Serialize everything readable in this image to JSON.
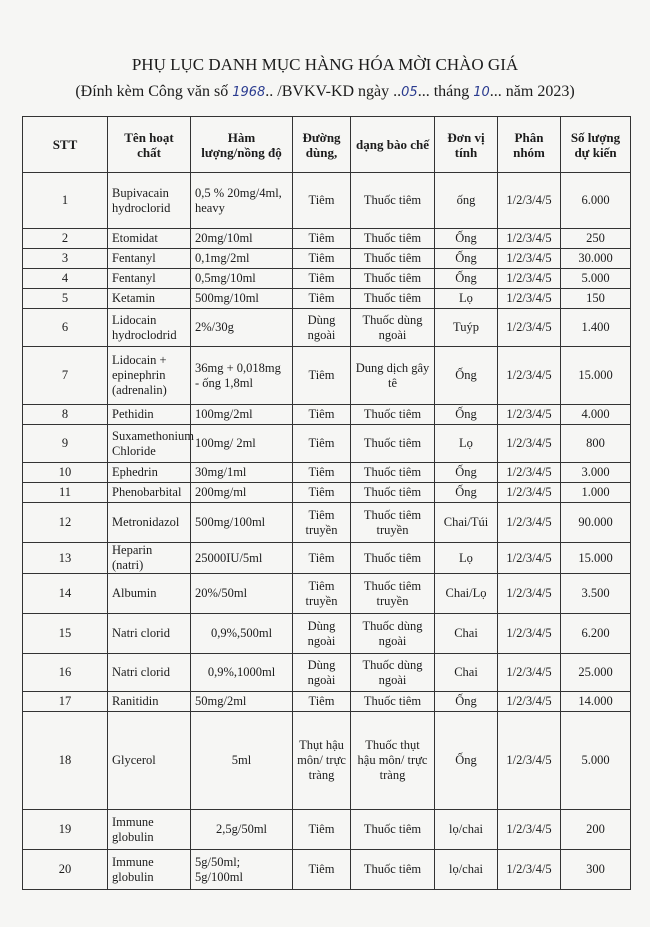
{
  "title": "PHỤ LỤC DANH MỤC HÀNG HÓA MỜI CHÀO GIÁ",
  "subtitle": {
    "p1": "(Đính kèm Công văn số ",
    "num": "1968",
    "p2": ".. /BVKV-KD ngày ..",
    "day": "05",
    "p3": "... tháng ",
    "month": "10",
    "p4": "... năm 2023)"
  },
  "headers": [
    "STT",
    "Tên hoạt chất",
    "Hàm lượng/nồng độ",
    "Đường dùng,",
    "dạng bào chế",
    "Đơn vị tính",
    "Phân nhóm",
    "Số lượng dự kiến"
  ],
  "rows": [
    [
      "1",
      "Bupivacain hydroclorid",
      "0,5 % 20mg/4ml, heavy",
      "Tiêm",
      "Thuốc tiêm",
      "ống",
      "1/2/3/4/5",
      "6.000"
    ],
    [
      "2",
      "Etomidat",
      "20mg/10ml",
      "Tiêm",
      "Thuốc tiêm",
      "Ống",
      "1/2/3/4/5",
      "250"
    ],
    [
      "3",
      "Fentanyl",
      "0,1mg/2ml",
      "Tiêm",
      "Thuốc tiêm",
      "Ống",
      "1/2/3/4/5",
      "30.000"
    ],
    [
      "4",
      "Fentanyl",
      "0,5mg/10ml",
      "Tiêm",
      "Thuốc tiêm",
      "Ống",
      "1/2/3/4/5",
      "5.000"
    ],
    [
      "5",
      "Ketamin",
      "500mg/10ml",
      "Tiêm",
      "Thuốc tiêm",
      "Lọ",
      "1/2/3/4/5",
      "150"
    ],
    [
      "6",
      "Lidocain hydroclodrid",
      "2%/30g",
      "Dùng ngoài",
      "Thuốc dùng ngoài",
      "Tuýp",
      "1/2/3/4/5",
      "1.400"
    ],
    [
      "7",
      "Lidocain + epinephrin (adrenalin)",
      "36mg + 0,018mg - ống 1,8ml",
      "Tiêm",
      "Dung dịch gây tê",
      "Ống",
      "1/2/3/4/5",
      "15.000"
    ],
    [
      "8",
      "Pethidin",
      "100mg/2ml",
      "Tiêm",
      "Thuốc tiêm",
      "Ống",
      "1/2/3/4/5",
      "4.000"
    ],
    [
      "9",
      "Suxamethonium Chloride",
      "100mg/ 2ml",
      "Tiêm",
      "Thuốc tiêm",
      "Lọ",
      "1/2/3/4/5",
      "800"
    ],
    [
      "10",
      "Ephedrin",
      "30mg/1ml",
      "Tiêm",
      "Thuốc tiêm",
      "Ống",
      "1/2/3/4/5",
      "3.000"
    ],
    [
      "11",
      "Phenobarbital",
      "200mg/ml",
      "Tiêm",
      "Thuốc tiêm",
      "Ống",
      "1/2/3/4/5",
      "1.000"
    ],
    [
      "12",
      "Metronidazol",
      "500mg/100ml",
      "Tiêm truyền",
      "Thuốc tiêm truyền",
      "Chai/Túi",
      "1/2/3/4/5",
      "90.000"
    ],
    [
      "13",
      "Heparin (natri)",
      "25000IU/5ml",
      "Tiêm",
      "Thuốc tiêm",
      "Lọ",
      "1/2/3/4/5",
      "15.000"
    ],
    [
      "14",
      "Albumin",
      "20%/50ml",
      "Tiêm truyền",
      "Thuốc tiêm truyền",
      "Chai/Lọ",
      "1/2/3/4/5",
      "3.500"
    ],
    [
      "15",
      "Natri clorid",
      "0,9%,500ml",
      "Dùng ngoài",
      "Thuốc dùng ngoài",
      "Chai",
      "1/2/3/4/5",
      "6.200"
    ],
    [
      "16",
      "Natri clorid",
      "0,9%,1000ml",
      "Dùng ngoài",
      "Thuốc dùng ngoài",
      "Chai",
      "1/2/3/4/5",
      "25.000"
    ],
    [
      "17",
      "Ranitidin",
      "50mg/2ml",
      "Tiêm",
      "Thuốc tiêm",
      "Ống",
      "1/2/3/4/5",
      "14.000"
    ],
    [
      "18",
      "Glycerol",
      "5ml",
      "Thụt hậu môn/ trực tràng",
      "Thuốc thụt hậu môn/ trực tràng",
      "Ống",
      "1/2/3/4/5",
      "5.000"
    ],
    [
      "19",
      "Immune globulin",
      "2,5g/50ml",
      "Tiêm",
      "Thuốc tiêm",
      "lọ/chai",
      "1/2/3/4/5",
      "200"
    ],
    [
      "20",
      "Immune globulin",
      "5g/50ml; 5g/100ml",
      "Tiêm",
      "Thuốc tiêm",
      "lọ/chai",
      "1/2/3/4/5",
      "300"
    ]
  ]
}
